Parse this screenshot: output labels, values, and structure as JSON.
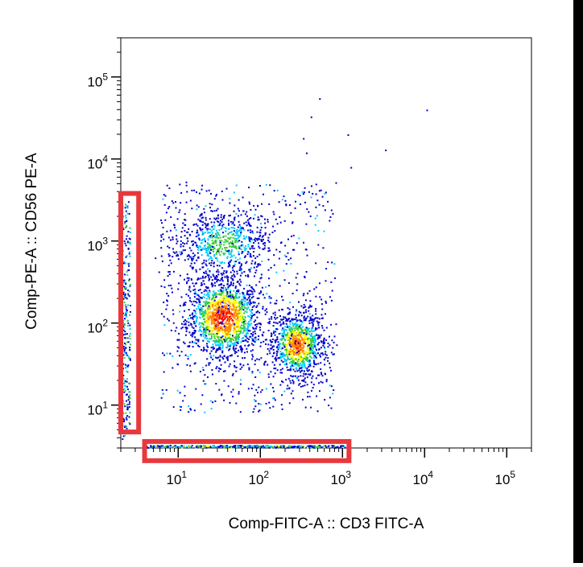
{
  "chart_data": {
    "type": "scatter",
    "subtype": "flow-cytometry-density-dot-plot",
    "xlabel": "Comp-FITC-A :: CD3 FITC-A",
    "ylabel": "Comp-PE-A :: CD56 PE-A",
    "x_scale": "log",
    "y_scale": "log",
    "xlim": [
      2,
      200000
    ],
    "ylim": [
      3,
      300000
    ],
    "x_ticks": [
      {
        "base": "10",
        "exp": "1",
        "value": 10
      },
      {
        "base": "10",
        "exp": "2",
        "value": 100
      },
      {
        "base": "10",
        "exp": "3",
        "value": 1000
      },
      {
        "base": "10",
        "exp": "4",
        "value": 10000
      },
      {
        "base": "10",
        "exp": "5",
        "value": 100000
      }
    ],
    "y_ticks": [
      {
        "base": "10",
        "exp": "1",
        "value": 10
      },
      {
        "base": "10",
        "exp": "2",
        "value": 100
      },
      {
        "base": "10",
        "exp": "3",
        "value": 1000
      },
      {
        "base": "10",
        "exp": "4",
        "value": 10000
      },
      {
        "base": "10",
        "exp": "5",
        "value": 100000
      }
    ],
    "grid": false,
    "legend": "none",
    "populations": [
      {
        "center": [
          35,
          120
        ],
        "peak_color": "#ff2a00"
      },
      {
        "center": [
          280,
          55
        ],
        "peak_color": "#ffb000"
      },
      {
        "center": [
          35,
          950
        ],
        "peak_color": "#33cc66"
      }
    ],
    "colors": {
      "low": "#0000cc",
      "mid_low": "#00ccff",
      "mid": "#33cc33",
      "mid_high": "#ffff00",
      "high": "#ff0000",
      "highlight_box": "#e8383d"
    },
    "outlier_points": [
      [
        520,
        55000
      ],
      [
        410,
        33000
      ],
      [
        10500,
        40000
      ],
      [
        3300,
        13000
      ],
      [
        1150,
        20000
      ],
      [
        330,
        18000
      ],
      [
        360,
        12000
      ],
      [
        1250,
        8000
      ],
      [
        820,
        5200
      ],
      [
        470,
        5000
      ],
      [
        700,
        2000
      ]
    ],
    "highlights": [
      {
        "name": "left-axis-events",
        "x_range": [
          2.0,
          3.3
        ],
        "y_range": [
          4.7,
          3800
        ]
      },
      {
        "name": "bottom-axis-events",
        "x_range": [
          3.9,
          1200
        ],
        "y_range": [
          2.1,
          3.6
        ]
      }
    ]
  }
}
